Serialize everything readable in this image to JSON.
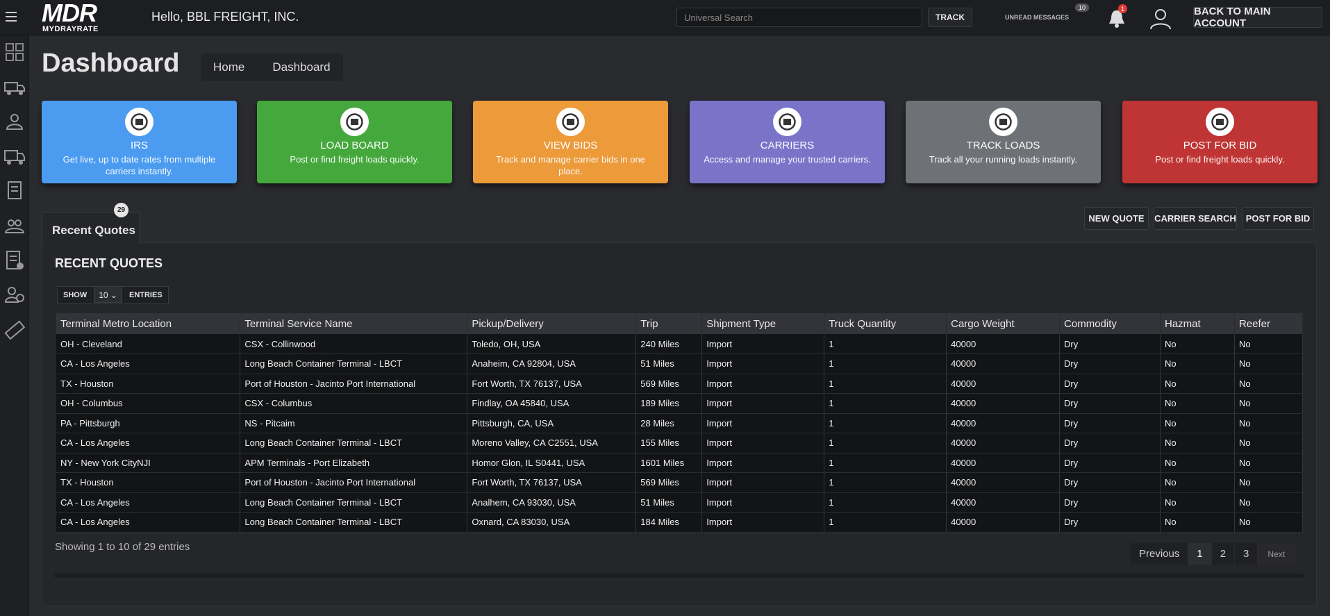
{
  "header": {
    "logo": "MDR",
    "logo_sub": "MYDRAYRATE",
    "greeting": "Hello, BBL FREIGHT, INC.",
    "search_placeholder": "Universal Search",
    "track": "TRACK",
    "messages": "UNREAD MESSAGES",
    "messages_badge": "10",
    "notification_badge": "1",
    "back": "BACK TO MAIN ACCOUNT"
  },
  "page": {
    "title": "Dashboard",
    "breadcrumb": [
      "Home",
      "Dashboard"
    ]
  },
  "cards": [
    {
      "title": "IRS",
      "text": "Get live, up to date rates from multiple carriers instantly.",
      "color": "#4b9cf0"
    },
    {
      "title": "LOAD BOARD",
      "text": "Post or find freight loads quickly.",
      "color": "#45a83c"
    },
    {
      "title": "VIEW BIDS",
      "text": "Track and manage carrier bids in one place.",
      "color": "#ec9a3a"
    },
    {
      "title": "CARRIERS",
      "text": "Access and manage your trusted carriers.",
      "color": "#7a74c9"
    },
    {
      "title": "TRACK LOADS",
      "text": "Track all your running loads instantly.",
      "color": "#6e7175"
    },
    {
      "title": "POST FOR BID",
      "text": "Post or find freight loads quickly.",
      "color": "#bf3434"
    }
  ],
  "tab": {
    "label": "Recent Quotes",
    "badge": "29"
  },
  "actions": [
    "NEW QUOTE",
    "CARRIER SEARCH",
    "POST FOR BID"
  ],
  "table": {
    "title": "RECENT QUOTES",
    "show": "SHOW",
    "page_size": "10",
    "entries": "ENTRIES",
    "columns": [
      "Terminal Metro Location",
      "Terminal Service Name",
      "Pickup/Delivery",
      "Trip",
      "Shipment Type",
      "Truck Quantity",
      "Cargo Weight",
      "Commodity",
      "Hazmat",
      "Reefer"
    ],
    "rows": [
      [
        "OH - Cleveland",
        "CSX - Collinwood",
        "Toledo, OH, USA",
        "240 Miles",
        "Import",
        "1",
        "40000",
        "Dry",
        "No",
        "No"
      ],
      [
        "CA - Los Angeles",
        "Long Beach Container Terminal - LBCT",
        "Anaheim, CA 92804, USA",
        "51 Miles",
        "Import",
        "1",
        "40000",
        "Dry",
        "No",
        "No"
      ],
      [
        "TX - Houston",
        "Port of Houston - Jacinto Port International",
        "Fort Worth, TX 76137, USA",
        "569 Miles",
        "Import",
        "1",
        "40000",
        "Dry",
        "No",
        "No"
      ],
      [
        "OH - Columbus",
        "CSX - Columbus",
        "Findlay, OA 45840, USA",
        "189 Miles",
        "Import",
        "1",
        "40000",
        "Dry",
        "No",
        "No"
      ],
      [
        "PA - Pittsburgh",
        "NS - Pitcaim",
        "Pittsburgh, CA, USA",
        "28 Miles",
        "Import",
        "1",
        "40000",
        "Dry",
        "No",
        "No"
      ],
      [
        "CA - Los Angeles",
        "Long Beach Container Terminal - LBCT",
        "Moreno Valley, CA C2551, USA",
        "155 Miles",
        "Import",
        "1",
        "40000",
        "Dry",
        "No",
        "No"
      ],
      [
        "NY - New York CityNJI",
        "APM Terminals - Port Elizabeth",
        "Homor Glon, IL S0441, USA",
        "1601 Miles",
        "Import",
        "1",
        "40000",
        "Dry",
        "No",
        "No"
      ],
      [
        "TX - Houston",
        "Port of Houston - Jacinto Port International",
        "Fort Worth, TX 76137, USA",
        "569 Miles",
        "Import",
        "1",
        "40000",
        "Dry",
        "No",
        "No"
      ],
      [
        "CA - Los Angeles",
        "Long Beach Container Terminal - LBCT",
        "Analhem, CA 93030, USA",
        "51 Miles",
        "Import",
        "1",
        "40000",
        "Dry",
        "No",
        "No"
      ],
      [
        "CA - Los Angeles",
        "Long Beach Container Terminal - LBCT",
        "Oxnard, CA 83030, USA",
        "184 Miles",
        "Import",
        "1",
        "40000",
        "Dry",
        "No",
        "No"
      ]
    ],
    "summary": "Showing 1 to 10 of 29 entries",
    "pagination": [
      "Previous",
      "1",
      "2",
      "3",
      "Next"
    ]
  }
}
